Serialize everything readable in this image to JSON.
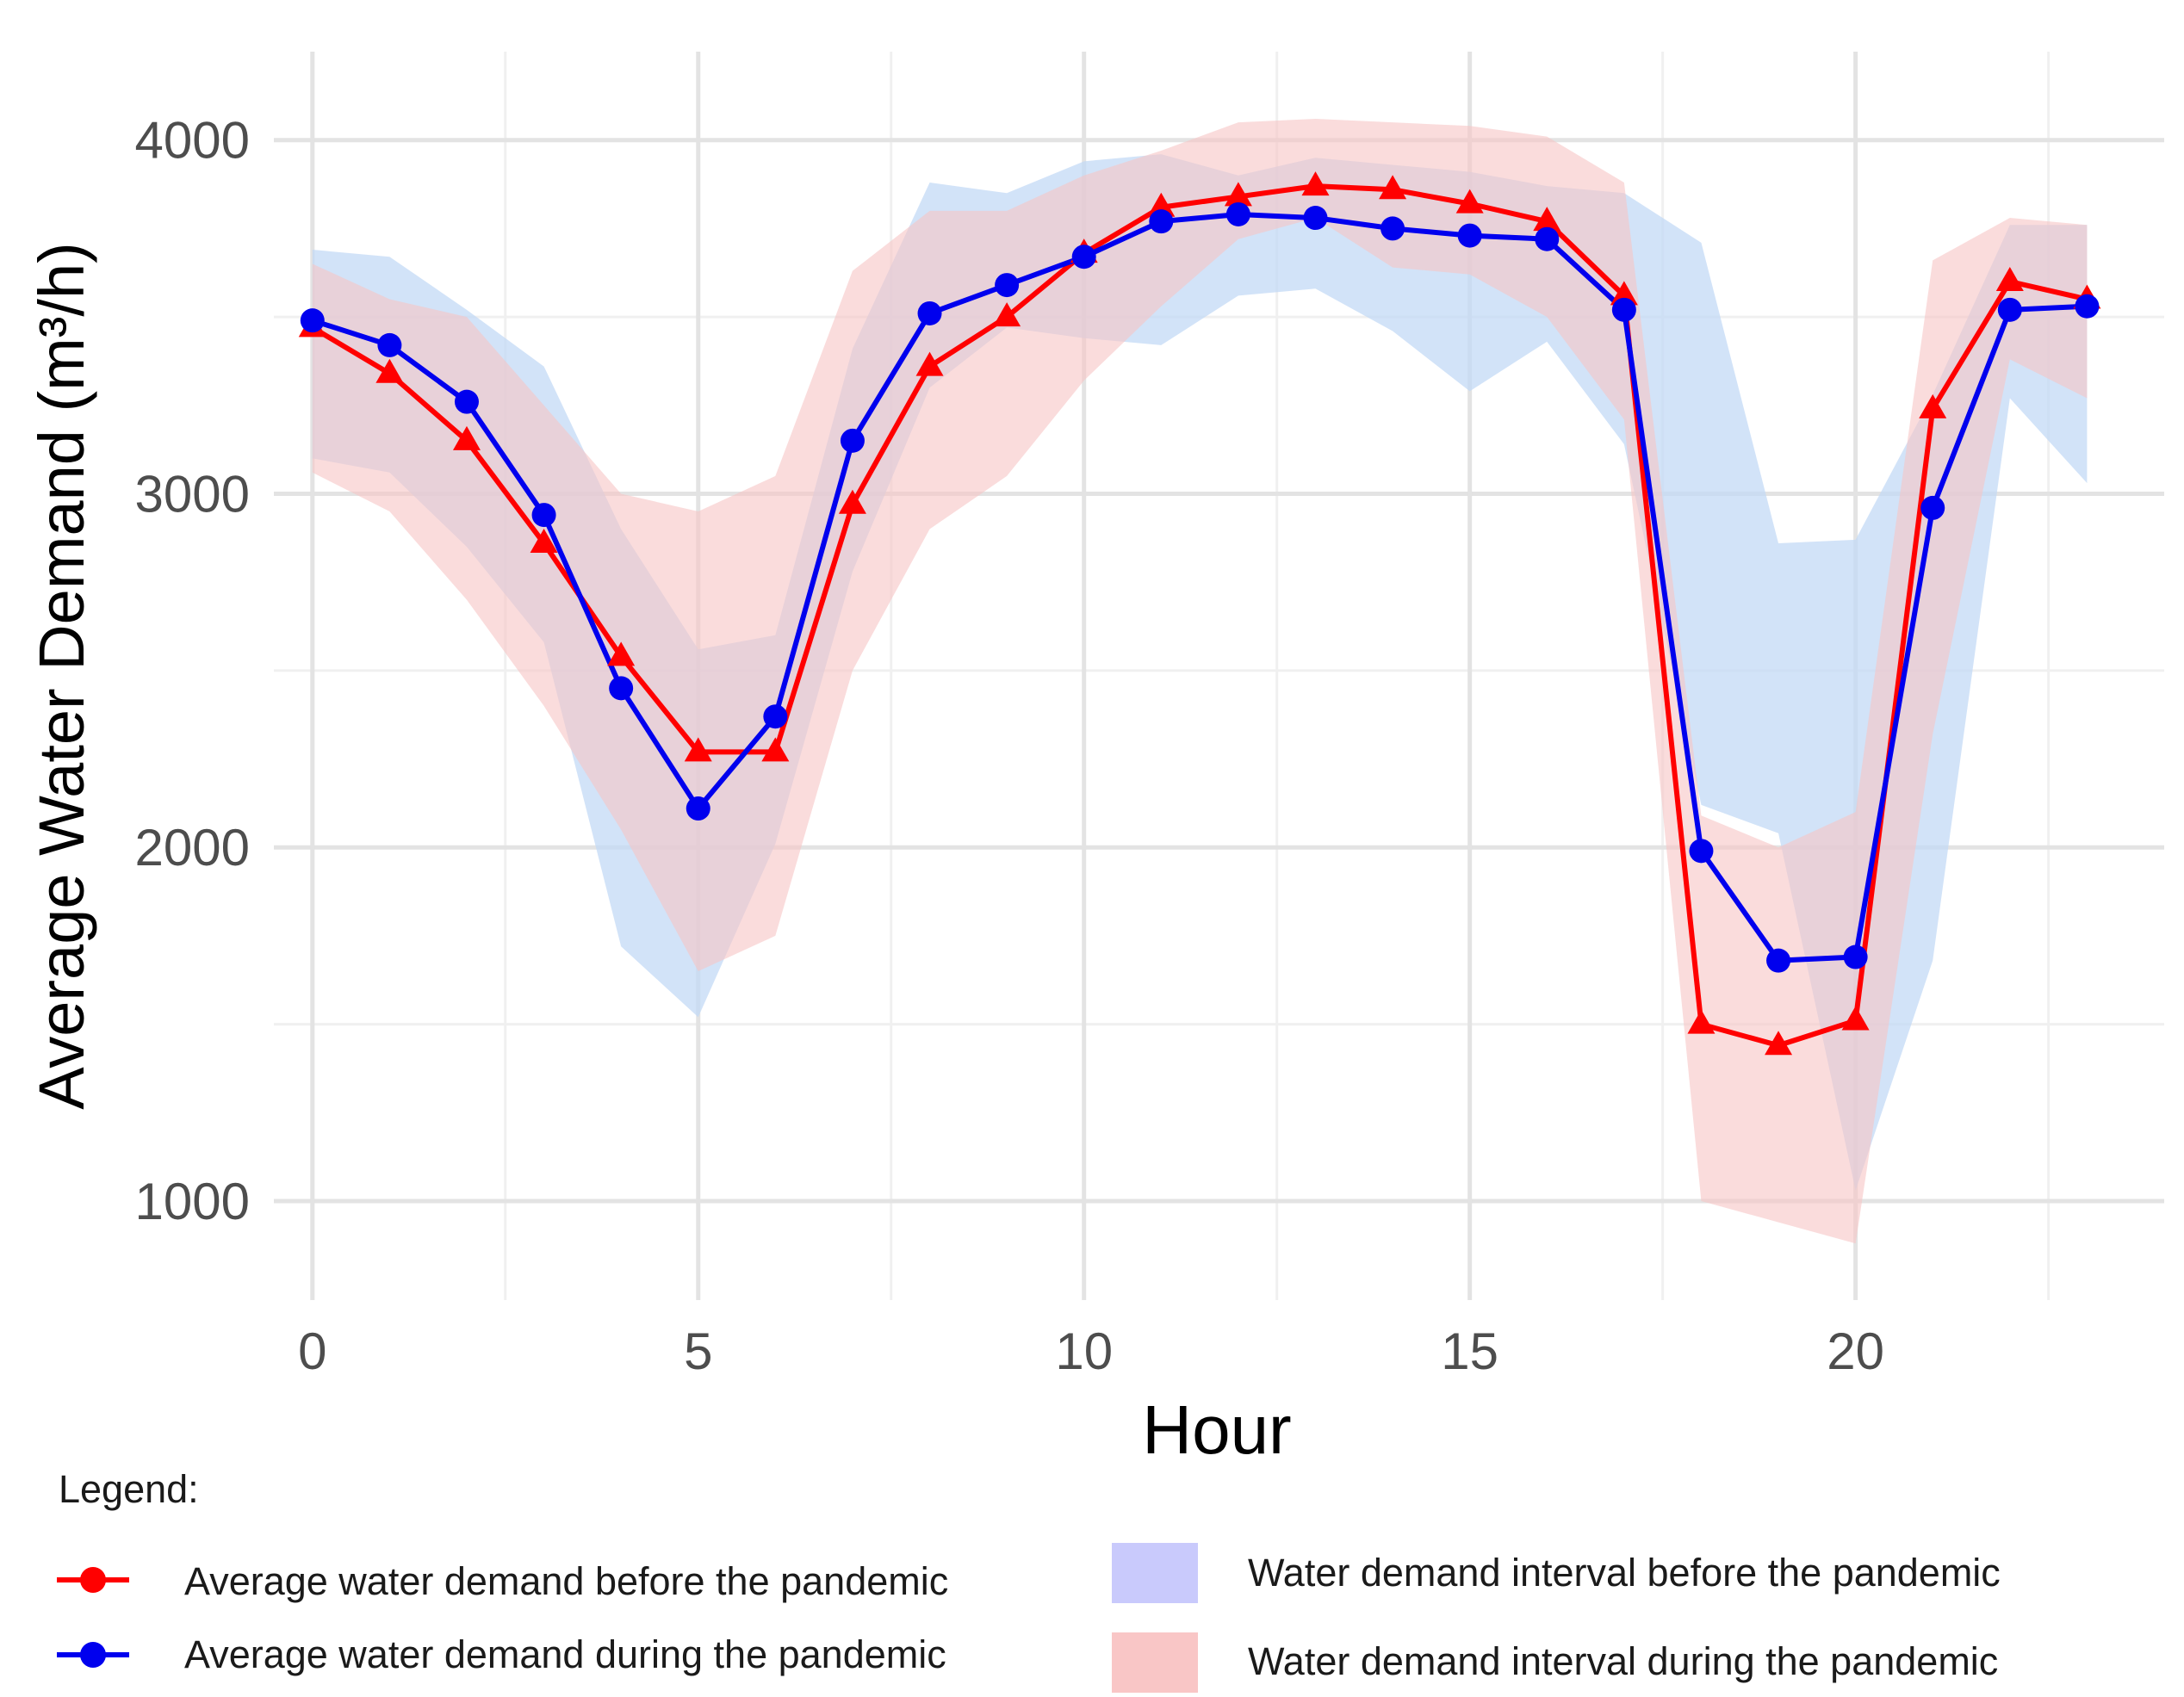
{
  "chart_data": {
    "type": "line",
    "title": "",
    "xlabel": "Hour",
    "ylabel": "Average Water Demand (m³/h)",
    "xlim": [
      -0.5,
      24.0
    ],
    "ylim": [
      720,
      4250
    ],
    "x_ticks": [
      0,
      5,
      10,
      15,
      20
    ],
    "x_tick_labels": [
      "0",
      "5",
      "10",
      "15",
      "20"
    ],
    "x_minor_grid": [
      2.5,
      7.5,
      12.5,
      17.5,
      22.5
    ],
    "y_ticks": [
      1000,
      2000,
      3000,
      4000
    ],
    "y_tick_labels": [
      "1000",
      "2000",
      "3000",
      "4000"
    ],
    "y_minor_grid": [
      1500,
      2500,
      3500
    ],
    "grid": true,
    "x": [
      0,
      1,
      2,
      3,
      4,
      5,
      6,
      7,
      8,
      9,
      10,
      11,
      12,
      13,
      14,
      15,
      16,
      17,
      18,
      19,
      20,
      21,
      22,
      23
    ],
    "series": [
      {
        "name": "Average water demand before the pandemic",
        "color": "#ff0000",
        "marker": "triangle",
        "values": [
          3470,
          3340,
          3150,
          2860,
          2540,
          2270,
          2270,
          2970,
          3360,
          3500,
          3680,
          3810,
          3840,
          3870,
          3860,
          3820,
          3770,
          3560,
          1500,
          1440,
          1510,
          3240,
          3600,
          3550
        ]
      },
      {
        "name": "Average water demand during the pandemic",
        "color": "#0000ee",
        "marker": "circle",
        "values": [
          3490,
          3420,
          3260,
          2940,
          2450,
          2110,
          2370,
          3150,
          3510,
          3590,
          3670,
          3770,
          3790,
          3780,
          3750,
          3730,
          3720,
          3520,
          1990,
          1680,
          1690,
          2960,
          3520,
          3530
        ]
      }
    ],
    "bands": [
      {
        "name": "Water demand interval before the pandemic",
        "color": "#c3d9f5",
        "upper": [
          3690,
          3670,
          3520,
          3360,
          2900,
          2560,
          2600,
          3410,
          3880,
          3850,
          3940,
          3960,
          3900,
          3950,
          3930,
          3910,
          3870,
          3850,
          3710,
          2860,
          2870,
          3280,
          3760,
          3760
        ],
        "lower": [
          3100,
          3060,
          2850,
          2580,
          1720,
          1520,
          2010,
          2780,
          3300,
          3470,
          3440,
          3420,
          3560,
          3580,
          3460,
          3290,
          3430,
          3140,
          2120,
          2040,
          1030,
          1680,
          3270,
          3030
        ]
      },
      {
        "name": "Water demand interval during the pandemic",
        "color": "#f7c5c5",
        "upper": [
          3650,
          3550,
          3500,
          3250,
          3000,
          2950,
          3050,
          3630,
          3800,
          3800,
          3900,
          3970,
          4050,
          4060,
          4050,
          4040,
          4010,
          3880,
          2090,
          2000,
          2100,
          3660,
          3780,
          3760
        ],
        "lower": [
          3060,
          2950,
          2700,
          2400,
          2050,
          1650,
          1750,
          2500,
          2900,
          3050,
          3320,
          3530,
          3720,
          3780,
          3640,
          3620,
          3500,
          3210,
          1000,
          940,
          880,
          2320,
          3380,
          3270
        ]
      }
    ]
  },
  "legend": {
    "heading": "Legend:",
    "items": [
      {
        "label": "Average water demand before the pandemic",
        "color": "#ff0000"
      },
      {
        "label": "Average water demand during the pandemic",
        "color": "#0000ee"
      },
      {
        "label": "Water demand interval before the pandemic",
        "color": "#c9cafc"
      },
      {
        "label": "Water demand interval during the pandemic",
        "color": "#f9c6c6"
      }
    ]
  }
}
